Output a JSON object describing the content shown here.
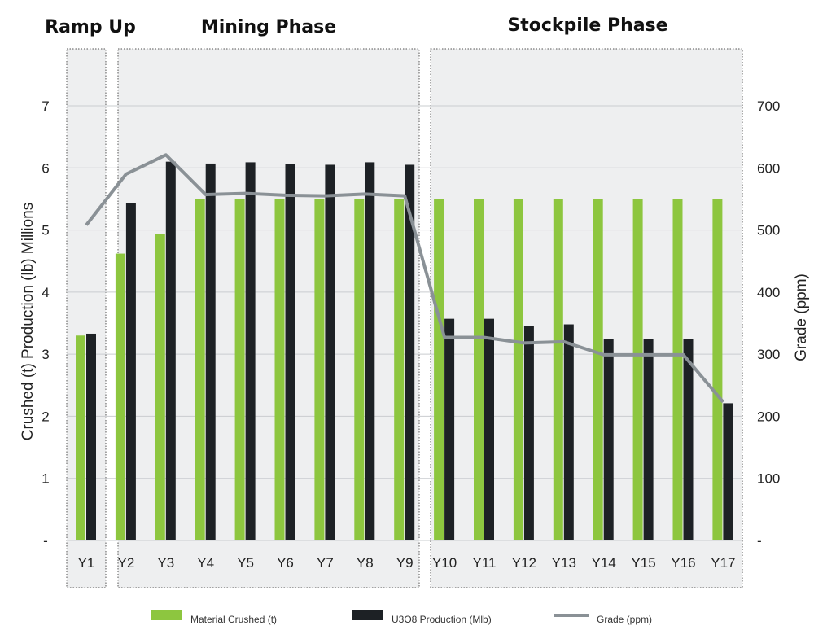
{
  "phases": [
    {
      "label": "Ramp Up",
      "from": "Y1",
      "to": "Y1"
    },
    {
      "label": "Mining Phase",
      "from": "Y2",
      "to": "Y9"
    },
    {
      "label": "Stockpile Phase",
      "from": "Y10",
      "to": "Y17"
    }
  ],
  "legend": {
    "material": "Material Crushed (t)",
    "production": "U3O8 Production (Mlb)",
    "grade": "Grade (ppm)"
  },
  "chart_data": {
    "type": "bar",
    "categories": [
      "Y1",
      "Y2",
      "Y3",
      "Y4",
      "Y5",
      "Y6",
      "Y7",
      "Y8",
      "Y9",
      "Y10",
      "Y11",
      "Y12",
      "Y13",
      "Y14",
      "Y15",
      "Y16",
      "Y17"
    ],
    "series": [
      {
        "name": "Material Crushed (t)",
        "type": "bar",
        "axis": "left",
        "color": "#8dc63f",
        "values": [
          3.3,
          4.62,
          4.93,
          5.5,
          5.5,
          5.5,
          5.5,
          5.5,
          5.5,
          5.5,
          5.5,
          5.5,
          5.5,
          5.5,
          5.5,
          5.5,
          5.5
        ]
      },
      {
        "name": "U3O8 Production (Mlb)",
        "type": "bar",
        "axis": "left",
        "color": "#1d2125",
        "values": [
          3.33,
          5.44,
          6.1,
          6.07,
          6.09,
          6.06,
          6.05,
          6.09,
          6.05,
          3.57,
          3.57,
          3.45,
          3.48,
          3.25,
          3.25,
          3.25,
          2.21
        ]
      },
      {
        "name": "Grade (ppm)",
        "type": "line",
        "axis": "right",
        "color": "#8a9196",
        "values": [
          508,
          590,
          621,
          557,
          559,
          556,
          555,
          558,
          555,
          327,
          327,
          318,
          320,
          299,
          299,
          299,
          223
        ]
      }
    ],
    "ylabel": "Crushed (t) Production (lb) Millions",
    "ylabel_right": "Grade (ppm)",
    "ylim": [
      0,
      7
    ],
    "ylim_right": [
      0,
      700
    ],
    "yticks": [
      "-",
      "1",
      "2",
      "3",
      "4",
      "5",
      "6",
      "7"
    ],
    "yticks_right": [
      "-",
      "100",
      "200",
      "300",
      "400",
      "500",
      "600",
      "700"
    ],
    "grid": true,
    "legend_position": "bottom"
  }
}
